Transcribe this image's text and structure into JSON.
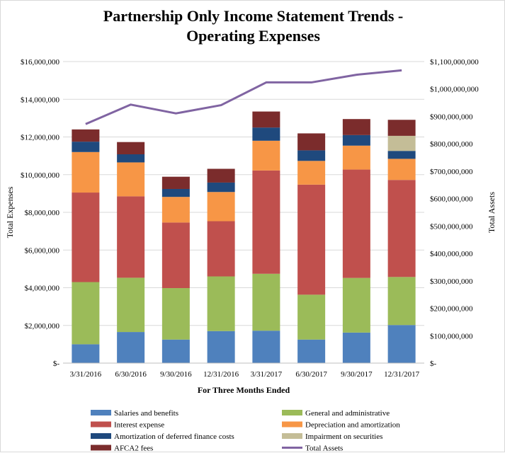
{
  "chart_data": {
    "type": "bar",
    "stacked": true,
    "title": "Partnership Only Income Statement Trends - Operating Expenses",
    "title_lines": [
      "Partnership Only Income Statement Trends -",
      "Operating Expenses"
    ],
    "xlabel": "For Three Months  Ended",
    "ylabel": "Total Expenses",
    "y2label": "Total Assets",
    "categories": [
      "3/31/2016",
      "6/30/2016",
      "9/30/2016",
      "12/31/2016",
      "3/31/2017",
      "6/30/2017",
      "9/30/2017",
      "12/31/2017"
    ],
    "ylim": [
      0,
      16000000
    ],
    "y2lim": [
      0,
      1100000000
    ],
    "yticks": [
      "$-",
      "$2,000,000",
      "$4,000,000",
      "$6,000,000",
      "$8,000,000",
      "$10,000,000",
      "$12,000,000",
      "$14,000,000",
      "$16,000,000"
    ],
    "y2ticks": [
      "$-",
      "$100,000,000",
      "$200,000,000",
      "$300,000,000",
      "$400,000,000",
      "$500,000,000",
      "$600,000,000",
      "$700,000,000",
      "$800,000,000",
      "$900,000,000",
      "$1,000,000,000",
      "$1,100,000,000"
    ],
    "grid": true,
    "legend_position": "bottom",
    "series": [
      {
        "name": "Salaries and benefits",
        "color": "#4f81bd",
        "values": [
          1000000,
          1650000,
          1250000,
          1700000,
          1720000,
          1250000,
          1620000,
          2020000
        ]
      },
      {
        "name": "General and administrative",
        "color": "#9bbb59",
        "values": [
          3300000,
          2880000,
          2730000,
          2900000,
          3020000,
          2380000,
          2900000,
          2550000
        ]
      },
      {
        "name": "Interest expense",
        "color": "#c0504d",
        "values": [
          4750000,
          4320000,
          3480000,
          2930000,
          5480000,
          5840000,
          5750000,
          5150000
        ]
      },
      {
        "name": "Depreciation and amortization",
        "color": "#f79646",
        "values": [
          2150000,
          1800000,
          1360000,
          1550000,
          1580000,
          1260000,
          1270000,
          1120000
        ]
      },
      {
        "name": "Amortization of deferred finance costs",
        "color": "#1f497d",
        "values": [
          550000,
          430000,
          420000,
          500000,
          700000,
          560000,
          560000,
          420000
        ]
      },
      {
        "name": "Impairment on securities",
        "color": "#c4bd97",
        "values": [
          0,
          0,
          0,
          0,
          0,
          0,
          0,
          800000
        ]
      },
      {
        "name": "AFCA2 fees",
        "color": "#7b2c2c",
        "values": [
          650000,
          650000,
          650000,
          730000,
          850000,
          900000,
          850000,
          850000
        ]
      }
    ],
    "line_series": {
      "name": "Total Assets",
      "color": "#8064a2",
      "axis": "secondary",
      "values": [
        872000000,
        943000000,
        911000000,
        941000000,
        1024000000,
        1024000000,
        1052000000,
        1068000000
      ]
    }
  }
}
